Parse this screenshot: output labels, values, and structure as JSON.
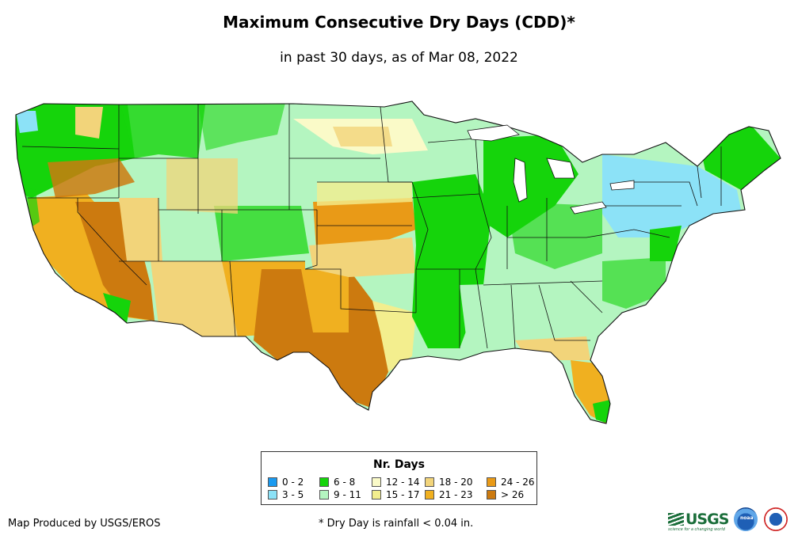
{
  "title": "Maximum Consecutive Dry Days (CDD)*",
  "subtitle": "in past 30 days, as of Mar 08, 2022",
  "legend": {
    "title": "Nr. Days",
    "items": [
      {
        "label": "0 - 2",
        "color": "#1a9af0"
      },
      {
        "label": "3 - 5",
        "color": "#8ce2f7"
      },
      {
        "label": "6 - 8",
        "color": "#15d40b"
      },
      {
        "label": "9 - 11",
        "color": "#b4f5c0"
      },
      {
        "label": "12 - 14",
        "color": "#fafac8"
      },
      {
        "label": "15 - 17",
        "color": "#f3ee8e"
      },
      {
        "label": "18 - 20",
        "color": "#f2d47a"
      },
      {
        "label": "21 - 23",
        "color": "#f0b020"
      },
      {
        "label": "24 - 26",
        "color": "#e99a17"
      },
      {
        "label": "> 26",
        "color": "#cc7a0f"
      }
    ]
  },
  "credit": "Map Produced by USGS/EROS",
  "footnote": "* Dry Day is rainfall < 0.04 in.",
  "logos": {
    "usgs": "USGS",
    "usgs_tagline": "science for a changing world",
    "noaa": "noaa"
  }
}
